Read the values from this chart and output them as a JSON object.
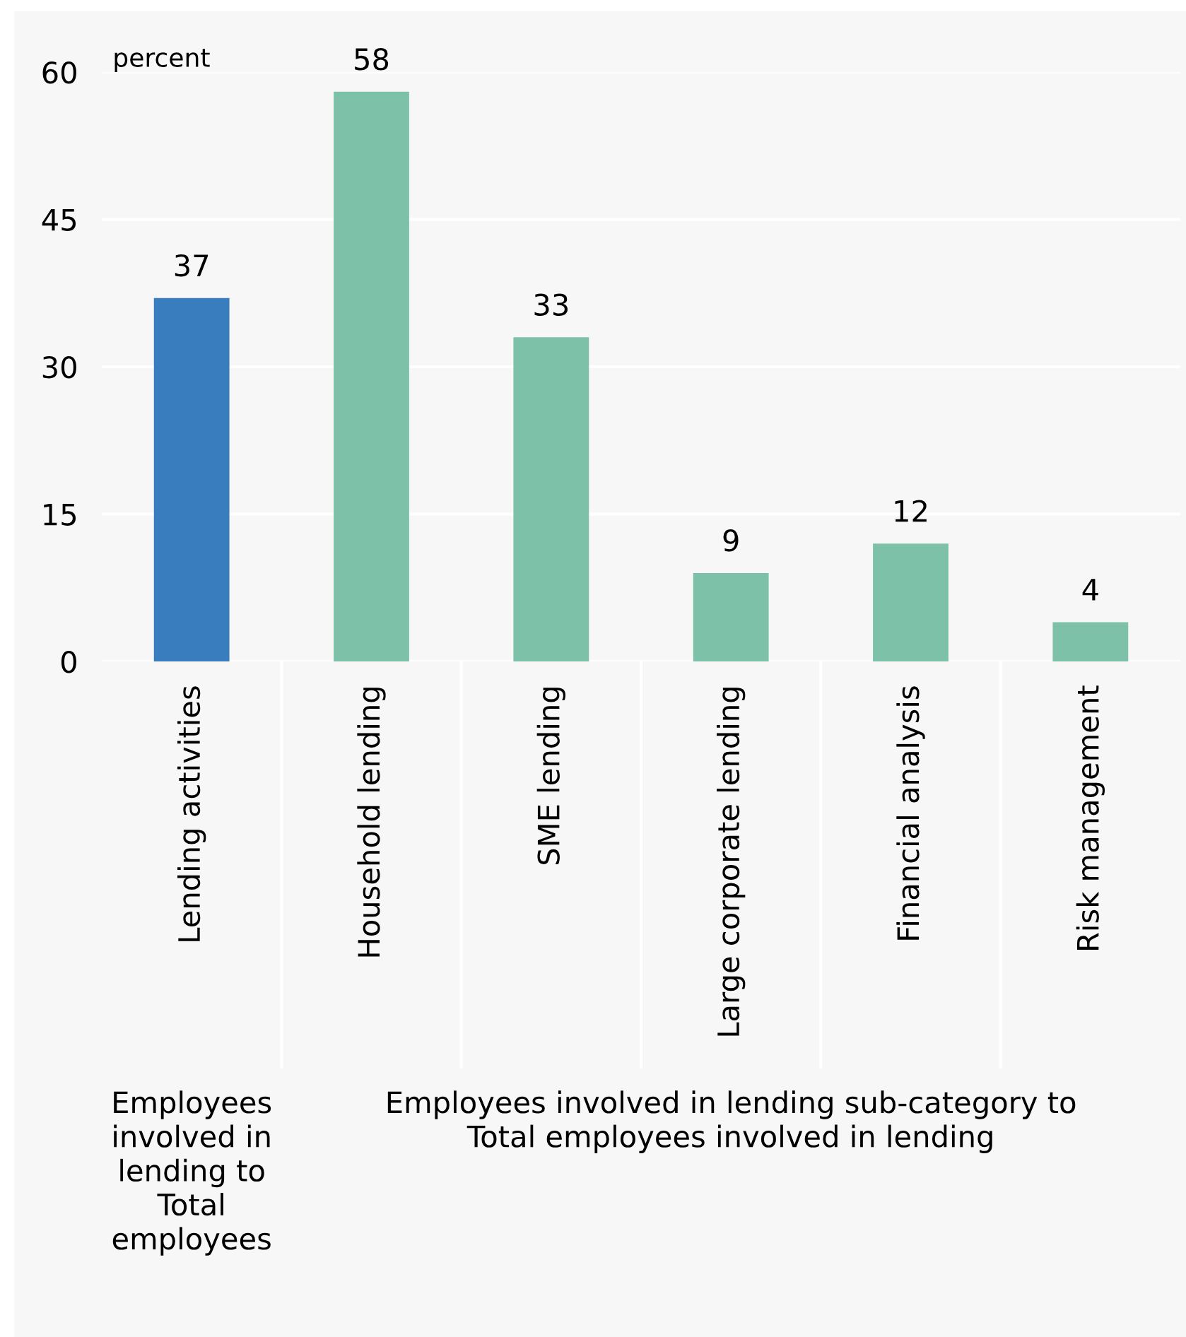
{
  "chart_data": {
    "type": "bar",
    "ylabel": "percent",
    "categories": [
      "Lending activities",
      "Household lending",
      "SME lending",
      "Large corporate lending",
      "Financial analysis",
      "Risk management"
    ],
    "values": [
      37,
      58,
      33,
      9,
      12,
      4
    ],
    "colors": [
      "#3a7dbf",
      "#7dc2a8",
      "#7dc2a8",
      "#7dc2a8",
      "#7dc2a8",
      "#7dc2a8"
    ],
    "data_labels": true,
    "ylim": [
      0,
      60
    ],
    "yticks": [
      0,
      15,
      30,
      45,
      60
    ],
    "grid": "y",
    "annotations": [
      "Employees involved in lending to Total employees",
      "Employees involved in lending sub-category to Total employees involved in lending"
    ]
  }
}
